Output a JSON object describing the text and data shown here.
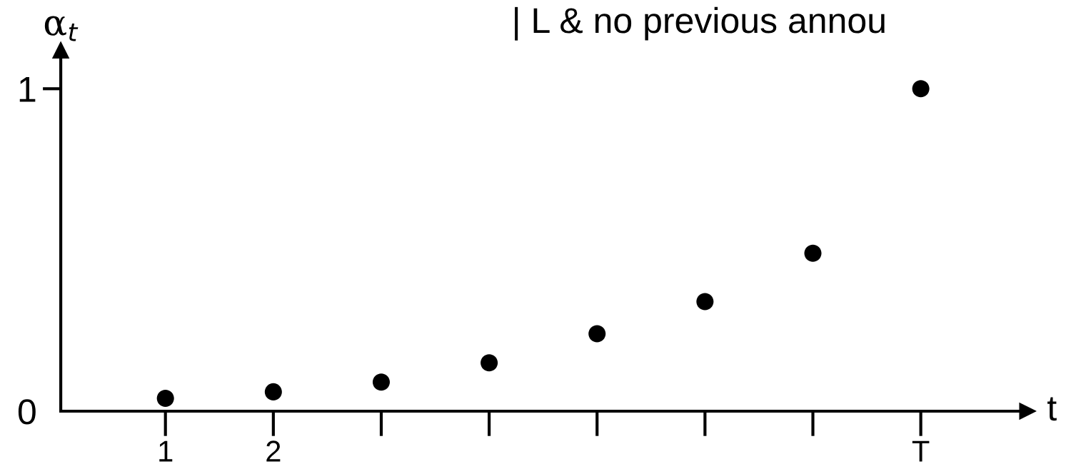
{
  "chart_data": {
    "type": "scatter",
    "title": "| L & no previous annou",
    "xlabel": "t",
    "ylabel": "α$_{t}$",
    "categories": [
      "1",
      "2",
      null,
      null,
      null,
      null,
      null,
      "T"
    ],
    "series": [
      {
        "color": "#000000",
        "values": [
          0.04,
          0.06,
          0.09,
          0.15,
          0.24,
          0.34,
          0.49,
          1
        ]
      }
    ],
    "ylim": [
      0,
      1.12
    ],
    "yticks": [
      0,
      1
    ],
    "marker": "circle",
    "grid": false,
    "legend": false
  }
}
